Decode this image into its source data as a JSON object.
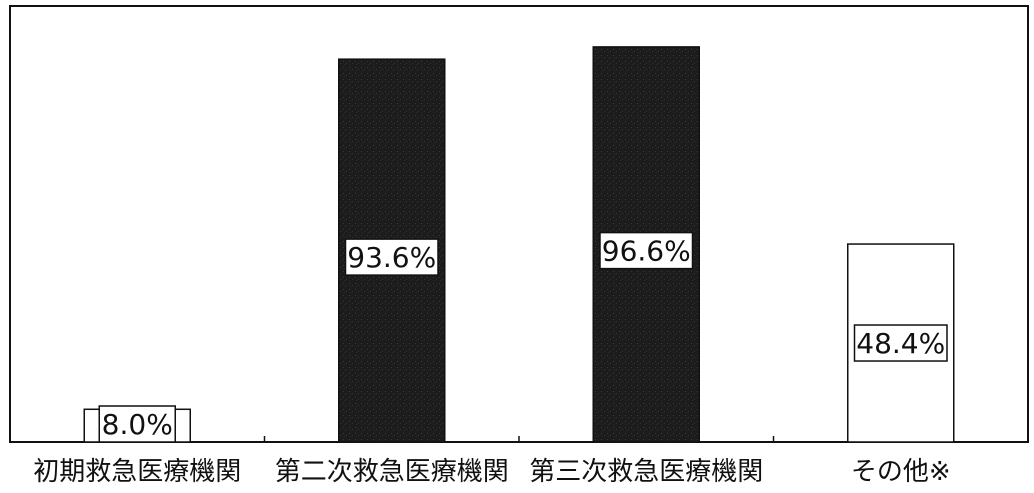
{
  "chart_data": {
    "type": "bar",
    "categories": [
      "初期救急医療機関",
      "第二次救急医療機関",
      "第三次救急医療機関",
      "その他※"
    ],
    "values": [
      8.0,
      93.6,
      96.6,
      48.4
    ],
    "value_labels": [
      "8.0%",
      "93.6%",
      "96.6%",
      "48.4%"
    ],
    "bar_fill": [
      "white",
      "dark",
      "dark",
      "white"
    ],
    "ylim": [
      0,
      100
    ],
    "grid": false,
    "title": "",
    "xlabel": "",
    "ylabel": ""
  },
  "colors": {
    "dark_bar": "#1e1e1e",
    "light_bar": "#ffffff",
    "axis": "#111111"
  }
}
